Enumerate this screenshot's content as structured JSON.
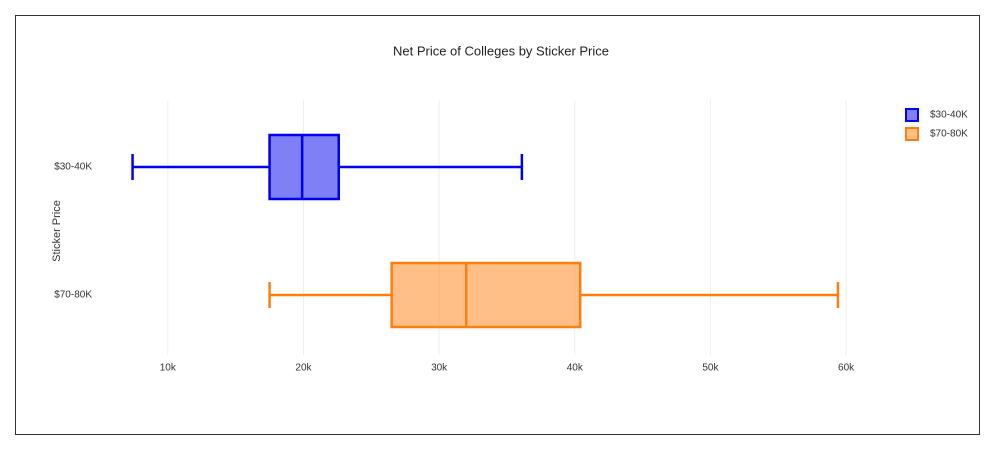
{
  "chart_data": {
    "type": "box",
    "title": "Net Price of Colleges by Sticker Price",
    "y_label": "Sticker Price",
    "categories": [
      "$30-40K",
      "$70-80K"
    ],
    "series": [
      {
        "name": "$30-40K",
        "color": "#0000ee",
        "min": 7400,
        "q1": 17500,
        "median": 19900,
        "q3": 22600,
        "max": 36100
      },
      {
        "name": "$70-80K",
        "color": "#ff7f0e",
        "min": 17500,
        "q1": 26500,
        "median": 32000,
        "q3": 40400,
        "max": 59400
      }
    ],
    "xlim": [
      5000,
      62500
    ],
    "xticks": [
      {
        "value": 10000,
        "label": "10k"
      },
      {
        "value": 20000,
        "label": "20k"
      },
      {
        "value": 30000,
        "label": "30k"
      },
      {
        "value": 40000,
        "label": "40k"
      },
      {
        "value": 50000,
        "label": "50k"
      },
      {
        "value": 60000,
        "label": "60k"
      }
    ],
    "grid": true,
    "legend": "top-right"
  }
}
